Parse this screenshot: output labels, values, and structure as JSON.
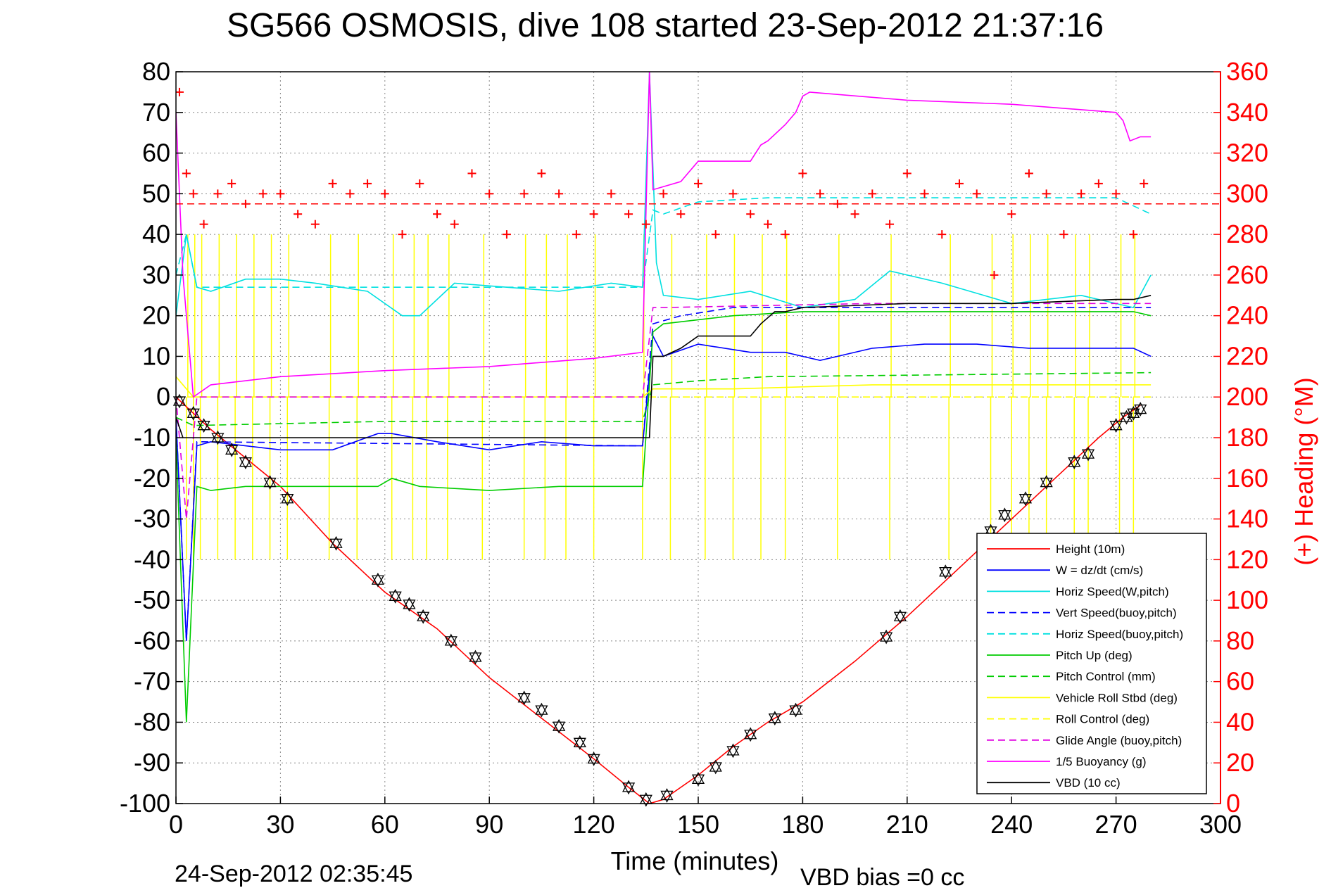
{
  "chart_data": {
    "type": "line",
    "title": "SG566 OSMOSIS, dive 108 started 23-Sep-2012 21:37:16",
    "xlabel": "Time (minutes)",
    "ylabel": "",
    "y2label": "(+) Heading (°M)",
    "footer_left": "24-Sep-2012 02:35:45",
    "footer_right": "VBD bias =0 cc",
    "xlim": [
      0,
      300
    ],
    "ylim": [
      -100,
      80
    ],
    "y2lim": [
      0,
      360
    ],
    "xticks": [
      0,
      30,
      60,
      90,
      120,
      150,
      180,
      210,
      240,
      270,
      300
    ],
    "yticks": [
      80,
      70,
      60,
      50,
      40,
      30,
      20,
      10,
      0,
      -10,
      -20,
      -30,
      -40,
      -50,
      -60,
      -70,
      -80,
      -90,
      -100
    ],
    "y2ticks": [
      360,
      340,
      320,
      300,
      280,
      260,
      240,
      220,
      200,
      180,
      160,
      140,
      120,
      100,
      80,
      60,
      40,
      20,
      0
    ],
    "grid": true,
    "legend_position": "lower-right",
    "series": [
      {
        "name": "Height (10m)",
        "color": "#ff0000",
        "dash": "solid",
        "x": [
          0,
          5,
          10,
          20,
          30,
          45,
          60,
          75,
          90,
          105,
          120,
          130,
          136,
          140,
          150,
          160,
          170,
          180,
          195,
          210,
          225,
          240,
          255,
          265,
          272,
          277
        ],
        "y": [
          0,
          -4,
          -8,
          -15,
          -22,
          -36,
          -48,
          -57,
          -69,
          -79,
          -89,
          -96,
          -100,
          -99,
          -93,
          -86,
          -80,
          -75,
          -65,
          -54,
          -42,
          -30,
          -18,
          -10,
          -5,
          -2
        ]
      },
      {
        "name": "W = dz/dt (cm/s)",
        "color": "#0000ff",
        "dash": "solid",
        "x": [
          0,
          3,
          6,
          10,
          20,
          30,
          45,
          58,
          62,
          75,
          90,
          105,
          120,
          134,
          137,
          140,
          150,
          165,
          175,
          185,
          200,
          215,
          230,
          245,
          260,
          275,
          280
        ],
        "y": [
          -5,
          -60,
          -12,
          -11,
          -12,
          -13,
          -13,
          -9,
          -9,
          -11,
          -13,
          -11,
          -12,
          -12,
          15,
          10,
          13,
          11,
          11,
          9,
          12,
          13,
          13,
          12,
          12,
          12,
          10
        ]
      },
      {
        "name": "Horiz Speed(W,pitch)",
        "color": "#00e0e0",
        "dash": "solid",
        "x": [
          0,
          3,
          6,
          10,
          20,
          30,
          40,
          55,
          65,
          70,
          80,
          95,
          110,
          125,
          134,
          136,
          138,
          140,
          150,
          165,
          180,
          195,
          205,
          220,
          240,
          260,
          275,
          280
        ],
        "y": [
          20,
          40,
          27,
          26,
          29,
          29,
          28,
          26,
          20,
          20,
          28,
          27,
          26,
          28,
          27,
          80,
          33,
          25,
          24,
          26,
          22,
          24,
          31,
          28,
          23,
          25,
          22,
          30
        ]
      },
      {
        "name": "Vert Speed(buoy,pitch)",
        "color": "#0000ff",
        "dash": "dashed",
        "x": [
          0,
          3,
          6,
          134,
          137,
          145,
          160,
          280
        ],
        "y": [
          -5,
          -60,
          -11,
          -12,
          18,
          20,
          22,
          22
        ]
      },
      {
        "name": "Horiz Speed(buoy,pitch)",
        "color": "#00e0e0",
        "dash": "dashed",
        "x": [
          0,
          3,
          6,
          134,
          137,
          140,
          150,
          170,
          200,
          240,
          270,
          280
        ],
        "y": [
          30,
          40,
          27,
          27,
          46,
          45,
          48,
          49,
          49,
          49,
          49,
          45
        ]
      },
      {
        "name": "Pitch Up (deg)",
        "color": "#00cc00",
        "dash": "solid",
        "x": [
          0,
          3,
          6,
          10,
          20,
          30,
          58,
          62,
          70,
          90,
          110,
          134,
          137,
          140,
          160,
          180,
          200,
          230,
          260,
          275,
          280
        ],
        "y": [
          -10,
          -80,
          -22,
          -23,
          -22,
          -22,
          -22,
          -20,
          -22,
          -23,
          -22,
          -22,
          16,
          18,
          20,
          21,
          21,
          21,
          21,
          21,
          20
        ]
      },
      {
        "name": "Pitch Control (mm)",
        "color": "#00cc00",
        "dash": "dashed",
        "x": [
          0,
          5,
          60,
          100,
          134,
          137,
          150,
          170,
          280
        ],
        "y": [
          -5,
          -7,
          -6,
          -6,
          -6,
          3,
          4,
          5,
          6
        ]
      },
      {
        "name": "Vehicle Roll Stbd (deg)",
        "color": "#ffff00",
        "dash": "solid",
        "x": [
          0,
          5,
          30,
          60,
          90,
          120,
          134,
          137,
          160,
          200,
          240,
          280
        ],
        "y": [
          5,
          0,
          0,
          0,
          0,
          0,
          0,
          2,
          2,
          3,
          3,
          3
        ]
      },
      {
        "name": "Roll Control (deg)",
        "color": "#ffff00",
        "dash": "dashed",
        "x": [
          0,
          5,
          134,
          137,
          280
        ],
        "y": [
          0,
          0,
          0,
          0,
          0
        ]
      },
      {
        "name": "Glide Angle (buoy,pitch)",
        "color": "#e000e0",
        "dash": "dashed",
        "x": [
          0,
          3,
          6,
          134,
          137,
          140,
          200,
          280
        ],
        "y": [
          0,
          -30,
          0,
          0,
          22,
          22,
          23,
          23
        ]
      },
      {
        "name": "1/5 Buoyancy (g)",
        "color": "#ff00ff",
        "dash": "solid",
        "x": [
          0,
          2,
          5,
          10,
          30,
          60,
          90,
          120,
          134,
          136,
          137,
          145,
          150,
          165,
          168,
          170,
          175,
          178,
          180,
          182,
          210,
          240,
          270,
          272,
          274,
          277,
          280
        ],
        "y": [
          70,
          30,
          0,
          3,
          5,
          6.5,
          7.5,
          9.5,
          11,
          80,
          51,
          53,
          58,
          58,
          62,
          63,
          67,
          70,
          74,
          75,
          73,
          72,
          70,
          68,
          63,
          64,
          64
        ]
      },
      {
        "name": "VBD (10 cc)",
        "color": "#000000",
        "dash": "solid",
        "x": [
          0,
          2,
          5,
          134,
          136,
          137,
          140,
          145,
          150,
          165,
          168,
          172,
          175,
          180,
          210,
          240,
          270,
          275,
          280
        ],
        "y": [
          -5,
          -10,
          -10,
          -10,
          -10,
          10,
          10,
          12,
          15,
          15,
          18,
          21,
          21,
          22,
          23,
          23,
          24,
          24,
          25
        ]
      }
    ],
    "heading": {
      "name": "(+) Heading",
      "color": "#ff0000",
      "reference_line": 295,
      "x": [
        1,
        3,
        5,
        8,
        12,
        16,
        20,
        25,
        30,
        35,
        40,
        45,
        50,
        55,
        60,
        65,
        70,
        75,
        80,
        85,
        90,
        95,
        100,
        105,
        110,
        115,
        120,
        125,
        130,
        135,
        140,
        145,
        150,
        155,
        160,
        165,
        170,
        175,
        180,
        185,
        190,
        195,
        200,
        205,
        210,
        215,
        220,
        225,
        230,
        235,
        240,
        245,
        250,
        255,
        260,
        265,
        270,
        275,
        278
      ],
      "y": [
        350,
        310,
        300,
        285,
        300,
        305,
        295,
        300,
        300,
        290,
        285,
        305,
        300,
        305,
        300,
        280,
        305,
        290,
        285,
        310,
        300,
        280,
        300,
        310,
        300,
        280,
        290,
        300,
        290,
        285,
        300,
        290,
        305,
        280,
        300,
        290,
        285,
        280,
        310,
        300,
        295,
        290,
        300,
        285,
        310,
        300,
        280,
        305,
        300,
        260,
        290,
        310,
        300,
        280,
        300,
        305,
        300,
        280,
        305
      ]
    },
    "markers": {
      "x": [
        1,
        5,
        8,
        12,
        16,
        20,
        27,
        32,
        46,
        58,
        63,
        67,
        71,
        79,
        86,
        100,
        105,
        110,
        116,
        120,
        130,
        135,
        141,
        150,
        155,
        160,
        165,
        172,
        178,
        204,
        208,
        221,
        234,
        238,
        244,
        250,
        258,
        262,
        270,
        273,
        275,
        277
      ],
      "y": [
        -1,
        -4,
        -7,
        -10,
        -13,
        -16,
        -21,
        -25,
        -36,
        -45,
        -49,
        -51,
        -54,
        -60,
        -64,
        -74,
        -77,
        -81,
        -85,
        -89,
        -96,
        -99,
        -98,
        -94,
        -91,
        -87,
        -83,
        -79,
        -77,
        -59,
        -54,
        -43,
        -33,
        -29,
        -25,
        -21,
        -16,
        -14,
        -7,
        -5,
        -4,
        -3
      ]
    },
    "yellow_spikes_x": [
      3,
      5,
      7,
      12,
      17,
      22,
      27,
      32,
      44,
      52,
      62,
      68,
      72,
      78,
      88,
      100,
      106,
      112,
      120,
      134,
      142,
      152,
      160,
      168,
      175,
      190,
      205,
      222,
      234,
      240,
      245,
      250,
      258,
      262,
      271,
      275
    ]
  }
}
